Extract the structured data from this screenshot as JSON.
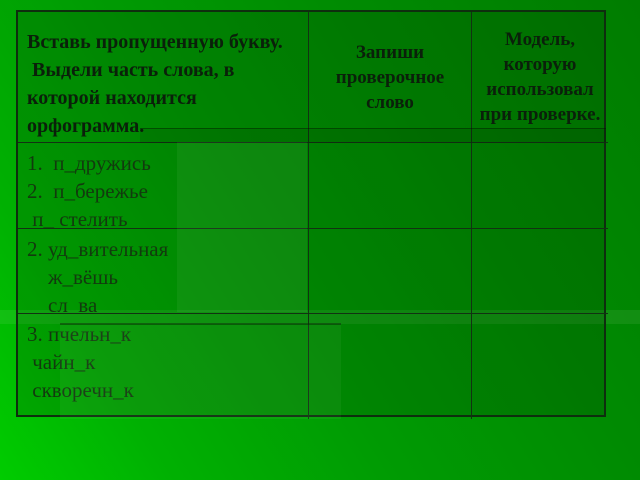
{
  "slide": {
    "table": {
      "header": {
        "task": "Вставь пропущенную букву.\n Выдели часть слова, в которой находится орфограмма.",
        "check_word": "Запиши проверочное слово",
        "model": "Модель, которую использовал при проверке."
      },
      "rows": [
        {
          "lines": [
            "1.  п_дружись",
            "2.  п_бережье",
            " п_ стелить"
          ],
          "check_word": "",
          "model": ""
        },
        {
          "lines": [
            "2. уд_вительная",
            "    ж_вёшь",
            "    сл_ва"
          ],
          "check_word": "",
          "model": ""
        },
        {
          "lines": [
            "3. пчельн_к",
            " чайн_к",
            " скворечн_к"
          ],
          "check_word": "",
          "model": ""
        }
      ]
    },
    "colors": {
      "background_bright": "#00cc00",
      "background_dark": "#007c00",
      "table_border": "#0e2e0e",
      "header_text": "#0a200a",
      "body_text": "#123a0e"
    }
  }
}
